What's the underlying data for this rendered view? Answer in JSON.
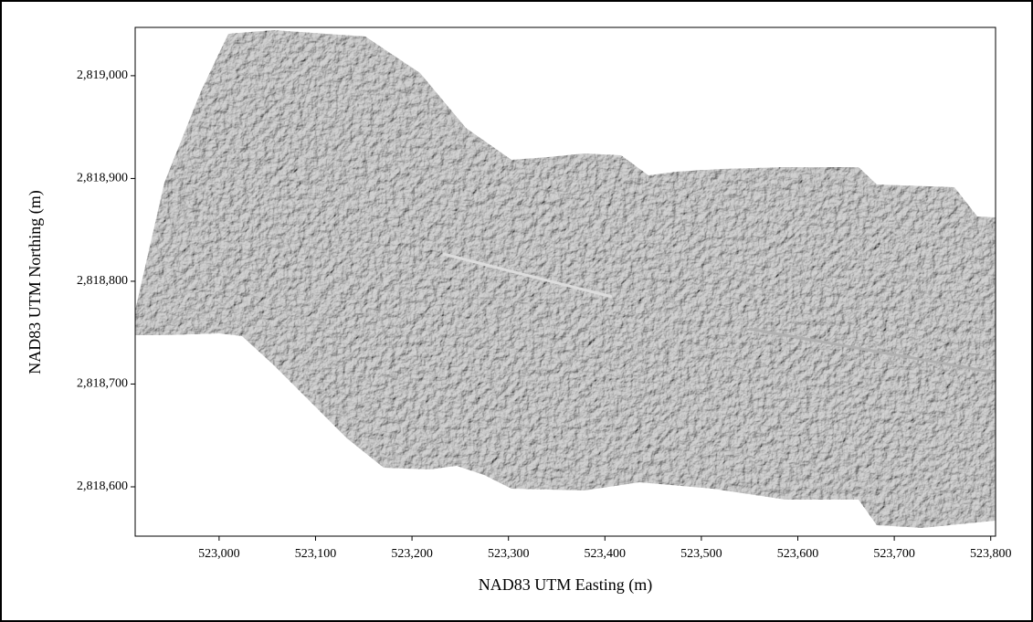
{
  "chart_data": {
    "type": "map",
    "xlabel": "NAD83 UTM Easting (m)",
    "ylabel": "NAD83 UTM Northing (m)",
    "xlim": [
      522913,
      523805
    ],
    "ylim": [
      2818552,
      2819047
    ],
    "xticks": [
      {
        "value": 523000,
        "label": "523,000"
      },
      {
        "value": 523100,
        "label": "523,100"
      },
      {
        "value": 523200,
        "label": "523,200"
      },
      {
        "value": 523300,
        "label": "523,300"
      },
      {
        "value": 523400,
        "label": "523,400"
      },
      {
        "value": 523500,
        "label": "523,500"
      },
      {
        "value": 523600,
        "label": "523,600"
      },
      {
        "value": 523700,
        "label": "523,700"
      },
      {
        "value": 523800,
        "label": "523,800"
      }
    ],
    "yticks": [
      {
        "value": 2818600,
        "label": "2,818,600"
      },
      {
        "value": 2818700,
        "label": "2,818,700"
      },
      {
        "value": 2818800,
        "label": "2,818,800"
      },
      {
        "value": 2818900,
        "label": "2,818,900"
      },
      {
        "value": 2819000,
        "label": "2,819,000"
      }
    ]
  }
}
